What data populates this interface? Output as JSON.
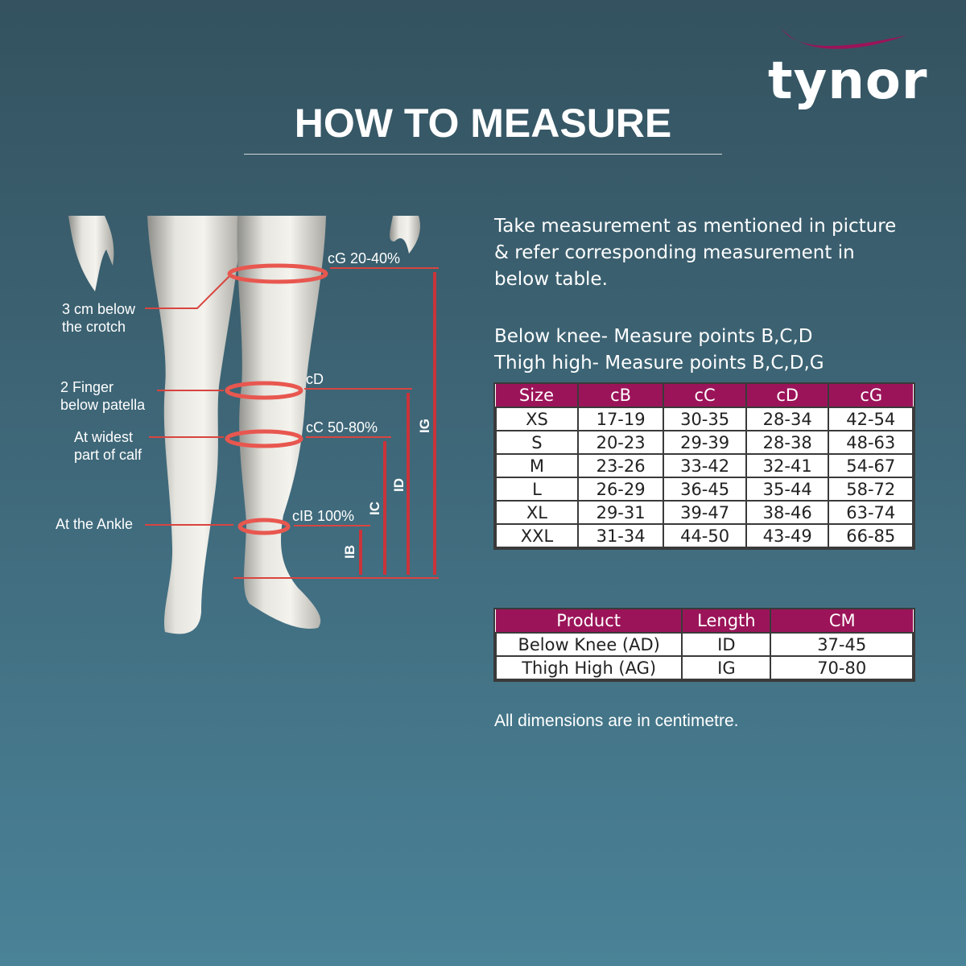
{
  "brand": {
    "name": "tynor",
    "swoosh_color": "#9b1459"
  },
  "title": "HOW TO MEASURE",
  "intro": {
    "lines": [
      "Take measurement as mentioned in picture",
      "& refer corresponding measurement in",
      "below table."
    ],
    "below_knee": "Below knee- Measure points B,C,D",
    "thigh_high": "Thigh high- Measure points B,C,D,G"
  },
  "figure": {
    "left_labels": {
      "crotch": [
        "3 cm below",
        "the crotch"
      ],
      "patella": [
        "2 Finger",
        "below patella"
      ],
      "calf": [
        "At widest",
        "part of calf"
      ],
      "ankle": "At the Ankle"
    },
    "circumference_labels": {
      "cG": "cG 20-40%",
      "cD": "cD",
      "cC": "cC 50-80%",
      "cB": "cIB 100%"
    },
    "length_labels": {
      "IB": "IB",
      "IC": "IC",
      "ID": "ID",
      "IG": "IG"
    },
    "arrow_color": "#d9443f"
  },
  "size_table": {
    "header_color": "#9b1459",
    "headers": [
      "Size",
      "cB",
      "cC",
      "cD",
      "cG"
    ],
    "rows": [
      [
        "XS",
        "17-19",
        "30-35",
        "28-34",
        "42-54"
      ],
      [
        "S",
        "20-23",
        "29-39",
        "28-38",
        "48-63"
      ],
      [
        "M",
        "23-26",
        "33-42",
        "32-41",
        "54-67"
      ],
      [
        "L",
        "26-29",
        "36-45",
        "35-44",
        "58-72"
      ],
      [
        "XL",
        "29-31",
        "39-47",
        "38-46",
        "63-74"
      ],
      [
        "XXL",
        "31-34",
        "44-50",
        "43-49",
        "66-85"
      ]
    ]
  },
  "length_table": {
    "headers": [
      "Product",
      "Length",
      "CM"
    ],
    "rows": [
      [
        "Below Knee (AD)",
        "ID",
        "37-45"
      ],
      [
        "Thigh High (AG)",
        "IG",
        "70-80"
      ]
    ]
  },
  "note": "All dimensions are in centimetre."
}
